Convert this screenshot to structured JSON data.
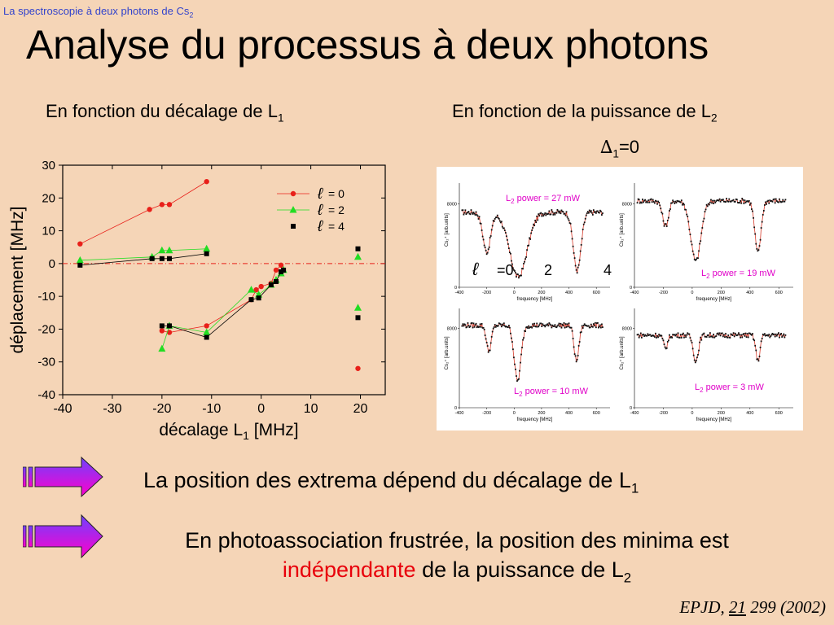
{
  "header": {
    "kicker": "La spectroscopie à deux photons de Cs",
    "kicker_sub": "2",
    "title": "Analyse du processus à deux photons"
  },
  "left_panel": {
    "subtitle": "En fonction du décalage de L",
    "subtitle_sub": "1"
  },
  "right_panel": {
    "subtitle": "En fonction de la puissance de L",
    "subtitle_sub": "2",
    "delta_symbol": "∆",
    "delta_sub": "1",
    "delta_value": "=0"
  },
  "bullets": {
    "line1": "La position des extrema dépend du décalage de L",
    "line1_sub": "1",
    "line2_part1": "En photoassociation frustrée, la position des minima est",
    "line2_highlight": "indépendante",
    "line2_part2": " de la puissance de L",
    "line2_sub": "2"
  },
  "citation": {
    "journal": "EPJD, ",
    "volume": "21",
    "rest": " 299 (2002)"
  },
  "colors": {
    "background": "#f5d5b7",
    "series_l0": "#e8201a",
    "series_l2": "#22dd22",
    "series_l4": "#000000",
    "arrow_magenta": "#ff00cc",
    "arrow_violet": "#7040ff",
    "kicker": "#3344cc",
    "highlight": "#e8000b",
    "panel_label": "#e000c8"
  },
  "chart_data": [
    {
      "type": "scatter",
      "title": "",
      "xlabel": "décalage L",
      "xlabel_sub": "1",
      "xlabel_unit": " [MHz]",
      "ylabel": "déplacement [MHz]",
      "xlim": [
        -40,
        25
      ],
      "ylim": [
        -40,
        30
      ],
      "xticks": [
        -40,
        -30,
        -20,
        -10,
        0,
        10,
        20
      ],
      "yticks": [
        -40,
        -30,
        -20,
        -10,
        0,
        10,
        20,
        30
      ],
      "zero_line": true,
      "legend_position": "top-right",
      "series": [
        {
          "name": "= 0",
          "symbol_text": "ℓ",
          "marker": "circle",
          "color": "#e8201a",
          "segments": [
            [
              [
                -36.5,
                6
              ],
              [
                -22.5,
                16.5
              ],
              [
                -20,
                18
              ],
              [
                -18.5,
                18
              ],
              [
                -11,
                25
              ]
            ],
            [
              [
                -20,
                -20.5
              ],
              [
                -18.5,
                -21
              ],
              [
                -11,
                -19
              ],
              [
                -2,
                -11
              ],
              [
                -1,
                -8
              ],
              [
                0,
                -7
              ],
              [
                2,
                -6
              ],
              [
                3,
                -2
              ],
              [
                4,
                -0.5
              ]
            ],
            [
              [
                19.5,
                -32
              ]
            ]
          ]
        },
        {
          "name": "= 2",
          "symbol_text": "ℓ",
          "marker": "triangle",
          "color": "#22dd22",
          "segments": [
            [
              [
                -36.5,
                1
              ],
              [
                -22,
                2
              ],
              [
                -20,
                4
              ],
              [
                -18.5,
                4
              ],
              [
                -11,
                4.5
              ]
            ],
            [
              [
                -20,
                -26
              ],
              [
                -18.5,
                -19
              ],
              [
                -11,
                -21
              ],
              [
                -2,
                -8
              ],
              [
                -0.5,
                -9.5
              ],
              [
                2,
                -6.5
              ],
              [
                3,
                -5
              ],
              [
                4,
                -3
              ],
              [
                4.5,
                -2
              ]
            ],
            [
              [
                19.5,
                2
              ],
              [
                19.5,
                -13.5
              ]
            ]
          ]
        },
        {
          "name": "= 4",
          "symbol_text": "ℓ",
          "marker": "square",
          "color": "#000000",
          "segments": [
            [
              [
                -36.5,
                -0.5
              ],
              [
                -22,
                1.5
              ],
              [
                -20,
                1.5
              ],
              [
                -18.5,
                1.5
              ],
              [
                -11,
                3
              ]
            ],
            [
              [
                -20,
                -19
              ],
              [
                -18.5,
                -19
              ],
              [
                -11,
                -22.5
              ],
              [
                -2,
                -11
              ],
              [
                -0.5,
                -10.5
              ],
              [
                2,
                -6.5
              ],
              [
                3,
                -5.5
              ],
              [
                4,
                -2.5
              ],
              [
                4.5,
                -2
              ]
            ],
            [
              [
                19.5,
                4.5
              ],
              [
                19.5,
                -16.5
              ]
            ]
          ]
        }
      ]
    },
    {
      "type": "line",
      "panels": [
        {
          "label": "L",
          "label_sub": "2",
          "label_rest": " power = 27 mW",
          "xlabel": "frequency [MHz]",
          "ylabel": "Cs₂⁺ [arb.units]",
          "xlim": [
            -400,
            700
          ],
          "xticks": [
            -400,
            -200,
            0,
            200,
            400,
            600
          ],
          "ylim": [
            0,
            10000
          ],
          "yticks": [
            0,
            8000
          ],
          "baseline": 7200,
          "dips": [
            [
              -200,
              3800,
              40
            ],
            [
              30,
              6200,
              90
            ],
            [
              460,
              5600,
              40
            ]
          ],
          "annotation": {
            "symbol": "ℓ",
            "values": [
              "=0",
              "2",
              "4"
            ]
          }
        },
        {
          "label": "L",
          "label_sub": "2",
          "label_rest": " power = 19 mW",
          "xlabel": "frequency [MHz]",
          "ylabel": "Cs₂⁺ [arb.units]",
          "xlim": [
            -400,
            700
          ],
          "xticks": [
            -400,
            -200,
            0,
            200,
            400,
            600
          ],
          "ylim": [
            0,
            10000
          ],
          "yticks": [
            0,
            8000
          ],
          "baseline": 8300,
          "dips": [
            [
              -185,
              2400,
              30
            ],
            [
              25,
              5800,
              50
            ],
            [
              455,
              5000,
              30
            ]
          ]
        },
        {
          "label": "L",
          "label_sub": "2",
          "label_rest": " power = 10 mW",
          "xlabel": "frequency [MHz]",
          "ylabel": "Cs₂⁺ [arb.units]",
          "xlim": [
            -400,
            700
          ],
          "xticks": [
            -400,
            -200,
            0,
            200,
            400,
            600
          ],
          "ylim": [
            0,
            10000
          ],
          "yticks": [
            0,
            8000
          ],
          "baseline": 8300,
          "dips": [
            [
              -185,
              2600,
              25
            ],
            [
              25,
              5600,
              35
            ],
            [
              455,
              3600,
              25
            ]
          ]
        },
        {
          "label": "L",
          "label_sub": "2",
          "label_rest": " power = 3 mW",
          "xlabel": "frequency [MHz]",
          "ylabel": "Cs₂⁺ [arb.units]",
          "xlim": [
            -400,
            700
          ],
          "xticks": [
            -400,
            -200,
            0,
            200,
            400,
            600
          ],
          "ylim": [
            0,
            10000
          ],
          "yticks": [
            0,
            8000
          ],
          "baseline": 7300,
          "dips": [
            [
              -185,
              1300,
              20
            ],
            [
              25,
              2600,
              25
            ],
            [
              455,
              2600,
              20
            ]
          ]
        }
      ]
    }
  ]
}
